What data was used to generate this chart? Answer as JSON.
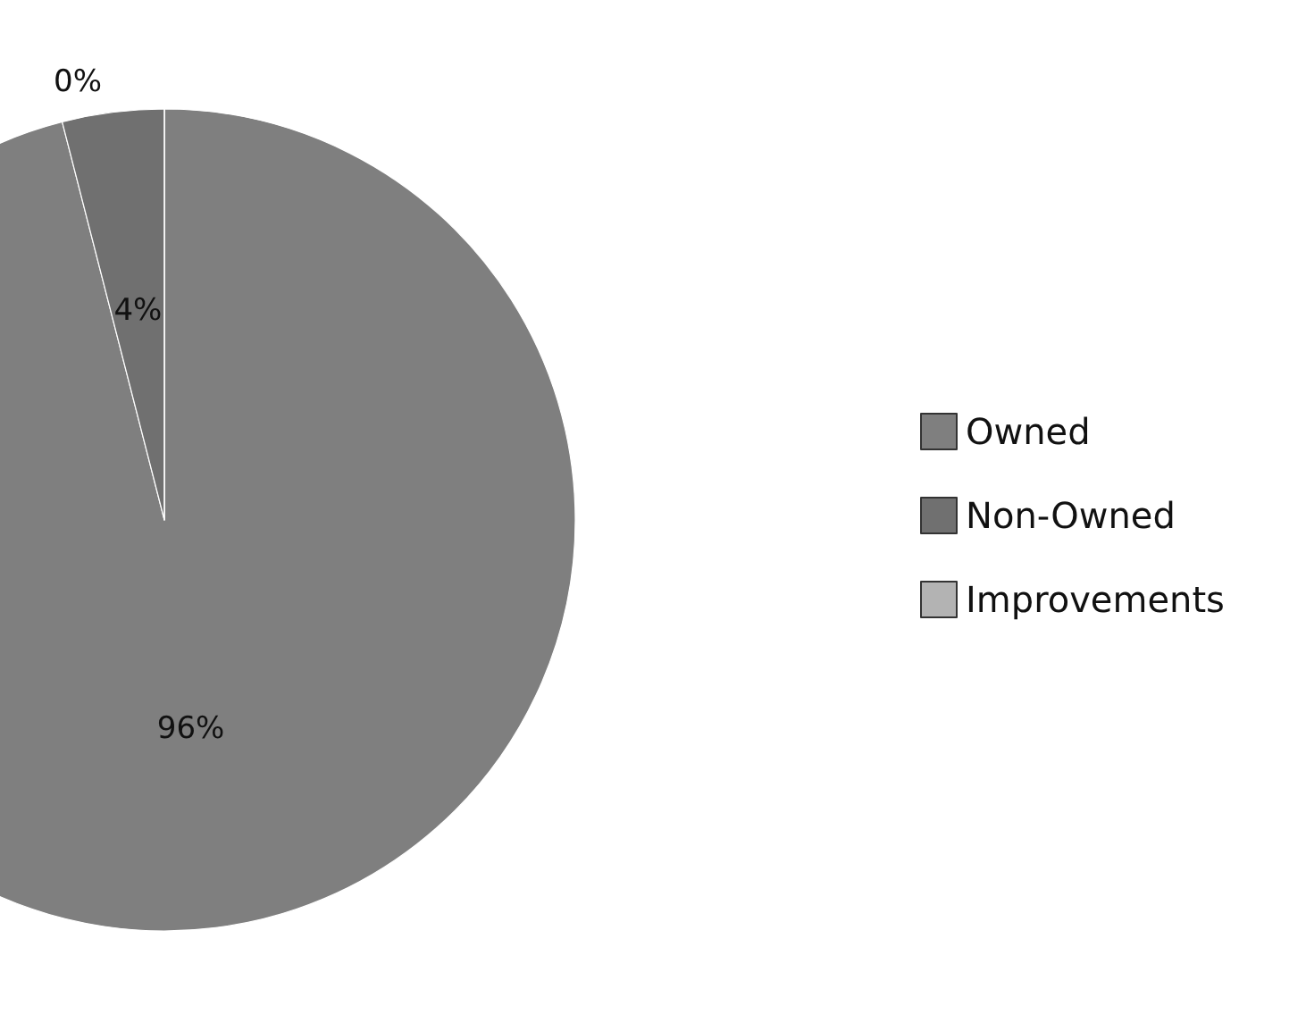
{
  "chart_data": {
    "type": "pie",
    "categories": [
      "Owned",
      "Non-Owned",
      "Improvements"
    ],
    "values": [
      96,
      4,
      0
    ],
    "colors": [
      "#7f7f7f",
      "#707070",
      "#b3b3b3"
    ],
    "value_labels": [
      "96%",
      "4%",
      "0%"
    ],
    "legend": "right"
  }
}
